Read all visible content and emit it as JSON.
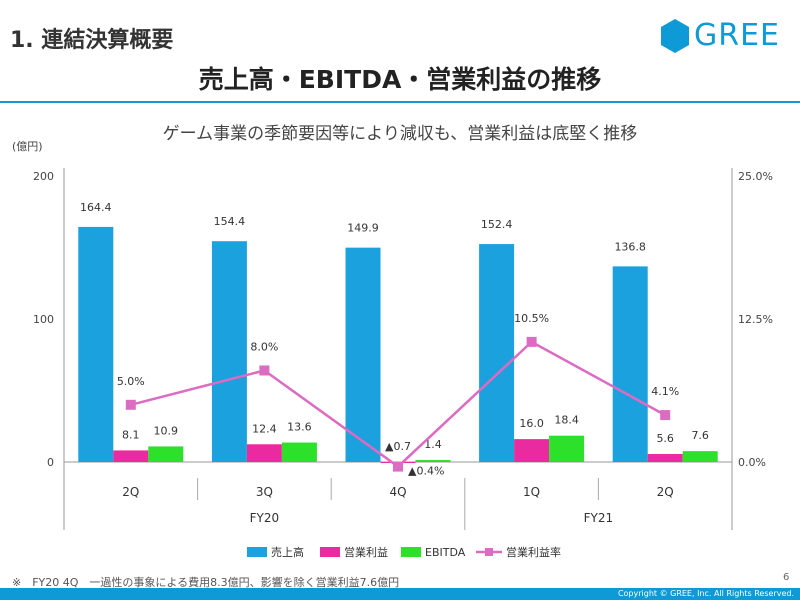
{
  "header": {
    "section_title": "1. 連結決算概要",
    "logo_text": "GREE",
    "main_title": "売上高・EBITDA・営業利益の推移",
    "subtitle": "ゲーム事業の季節要因等により減収も、営業利益は底堅く推移",
    "unit": "(億円)"
  },
  "chart_data": {
    "type": "bar",
    "categories": [
      "2Q",
      "3Q",
      "4Q",
      "1Q",
      "2Q"
    ],
    "groups": [
      {
        "label": "FY20",
        "categories": [
          "2Q",
          "3Q",
          "4Q"
        ]
      },
      {
        "label": "FY21",
        "categories": [
          "1Q",
          "2Q"
        ]
      }
    ],
    "series": [
      {
        "name": "売上高",
        "color": "#1ba1dd",
        "values": [
          164.4,
          154.4,
          149.9,
          152.4,
          136.8
        ],
        "labels": [
          "164.4",
          "154.4",
          "149.9",
          "152.4",
          "136.8"
        ]
      },
      {
        "name": "営業利益",
        "color": "#ea2ba0",
        "values": [
          8.1,
          12.4,
          -0.7,
          16.0,
          5.6
        ],
        "labels": [
          "8.1",
          "12.4",
          "▲0.7",
          "16.0",
          "5.6"
        ]
      },
      {
        "name": "EBITDA",
        "color": "#2de02a",
        "values": [
          10.9,
          13.6,
          1.4,
          18.4,
          7.6
        ],
        "labels": [
          "10.9",
          "13.6",
          "1.4",
          "18.4",
          "7.6"
        ]
      }
    ],
    "line_series": {
      "name": "営業利益率",
      "type": "line",
      "axis": "right",
      "color": "#dc6bc2",
      "values": [
        5.0,
        8.0,
        -0.4,
        10.5,
        4.1
      ],
      "labels": [
        "5.0%",
        "8.0%",
        "▲0.4%",
        "10.5%",
        "4.1%"
      ]
    },
    "y_left": {
      "ylim": [
        0,
        200
      ],
      "ticks": [
        "0",
        "100",
        "200"
      ]
    },
    "y_right": {
      "ylim": [
        0,
        25
      ],
      "ticks": [
        "0.0%",
        "12.5%",
        "25.0%"
      ]
    },
    "legend_position": "bottom",
    "grid": false
  },
  "footnote": "※　FY20 4Q　一過性の事象による費用8.3億円、影響を除く営業利益7.6億円",
  "page_number": "6",
  "copyright": "Copyright © GREE, Inc. All Rights Reserved."
}
